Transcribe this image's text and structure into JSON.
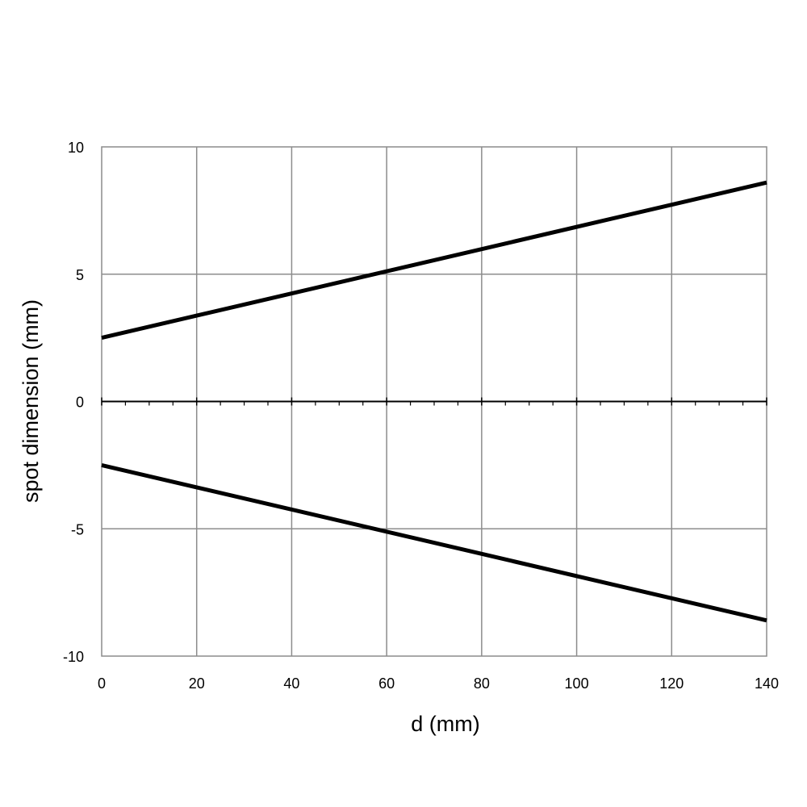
{
  "chart_data": {
    "type": "line",
    "title": "",
    "xlabel": "d (mm)",
    "ylabel": "spot dimension (mm)",
    "xlim": [
      0,
      140
    ],
    "ylim": [
      -10,
      10
    ],
    "xticks": [
      0,
      20,
      40,
      60,
      80,
      100,
      120,
      140
    ],
    "xtick_labels": [
      "0",
      "20",
      "40",
      "60",
      "80",
      "100",
      "120",
      "140"
    ],
    "yticks": [
      -10,
      -5,
      0,
      5,
      10
    ],
    "ytick_labels": [
      "-10",
      "-5",
      "0",
      "5",
      "10"
    ],
    "minor_xticks_on_zero_axis": [
      5,
      10,
      15,
      25,
      30,
      35,
      45,
      50,
      55,
      65,
      70,
      75,
      85,
      90,
      95,
      105,
      110,
      115,
      125,
      130,
      135
    ],
    "grid": true,
    "legend": "none",
    "series": [
      {
        "x": [
          0,
          140
        ],
        "y": [
          2.5,
          8.6
        ],
        "color": "#000000"
      },
      {
        "x": [
          0,
          140
        ],
        "y": [
          -2.5,
          -8.6
        ],
        "color": "#000000"
      }
    ]
  }
}
